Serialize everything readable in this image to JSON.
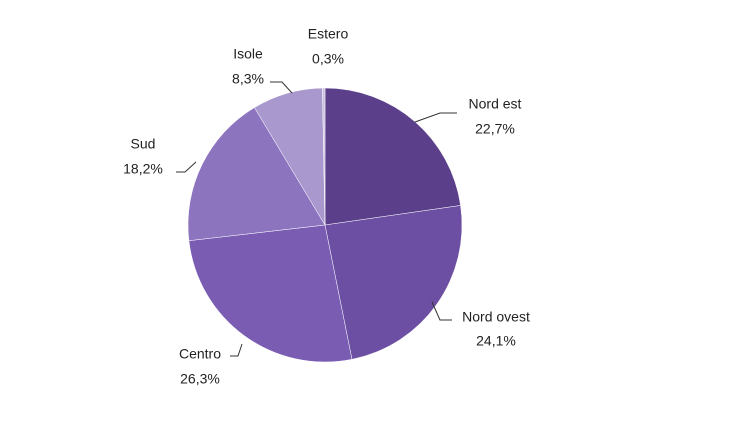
{
  "chart_data": {
    "type": "pie",
    "categories": [
      "Nord est",
      "Nord ovest",
      "Centro",
      "Sud",
      "Isole",
      "Estero"
    ],
    "values": [
      22.7,
      24.1,
      26.3,
      18.2,
      8.3,
      0.3
    ],
    "value_labels": [
      "22,7%",
      "24,1%",
      "26,3%",
      "18,2%",
      "8,3%",
      "0,3%"
    ],
    "colors": [
      "#5b3f8a",
      "#6c4ea2",
      "#7a5db3",
      "#8c74bf",
      "#a898cd",
      "#cbc0e0"
    ]
  }
}
